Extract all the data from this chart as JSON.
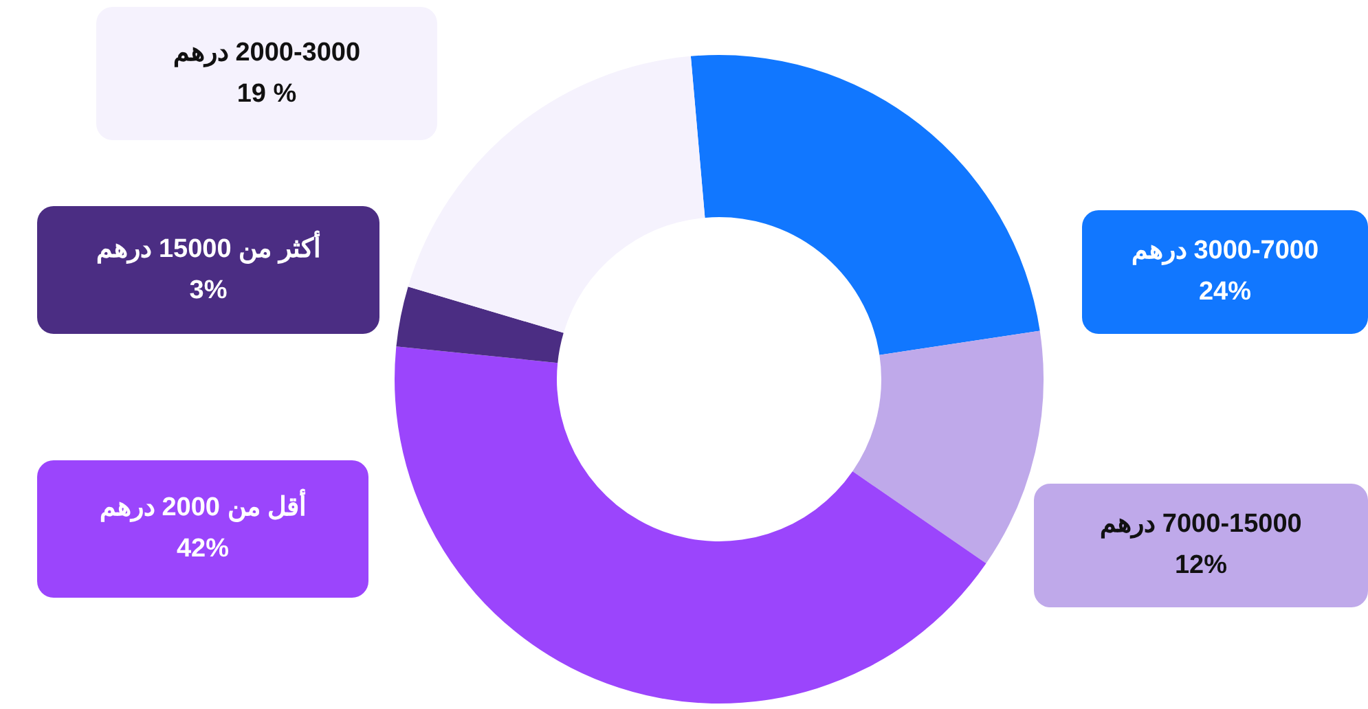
{
  "chart_data": {
    "type": "donut",
    "categories": [
      "3000-7000 درهم",
      "7000-15000 درهم",
      "أقل من 2000 درهم",
      "أكثر من 15000 درهم",
      "2000-3000 درهم"
    ],
    "values": [
      24,
      12,
      42,
      3,
      19
    ],
    "value_labels": [
      "24%",
      "12%",
      "42%",
      "3%",
      "19 %"
    ],
    "colors": [
      "#1177ff",
      "#bfa9ea",
      "#9b45fc",
      "#4b2d83",
      "#f5f2fd"
    ],
    "legend": false
  }
}
